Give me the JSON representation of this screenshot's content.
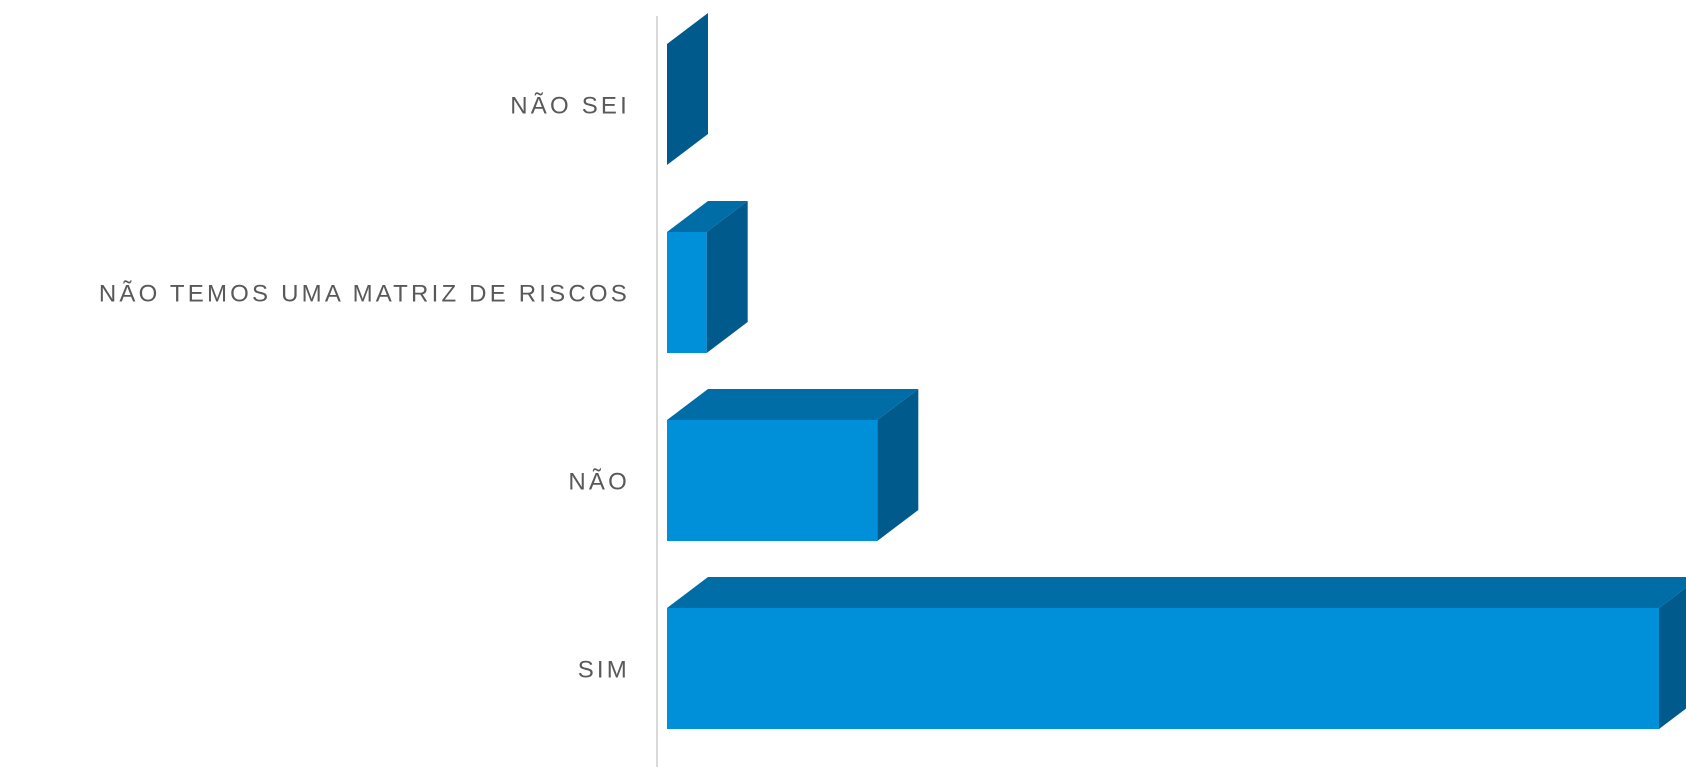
{
  "chart_data": {
    "type": "bar",
    "orientation": "horizontal",
    "style": "3d",
    "categories": [
      "NÃO SEI",
      "NÃO TEMOS UMA MATRIZ DE RISCOS",
      "NÃO",
      "SIM"
    ],
    "values": [
      0,
      1,
      5.3,
      25
    ],
    "title": "",
    "xlabel": "",
    "ylabel": "",
    "xlim": [
      0,
      25
    ],
    "grid": false,
    "legend": "none",
    "colors": {
      "front": "#0090D9",
      "top": "#006DA6",
      "side": "#005A8C",
      "axis": "#D9D9D9",
      "label": "#595959"
    }
  }
}
